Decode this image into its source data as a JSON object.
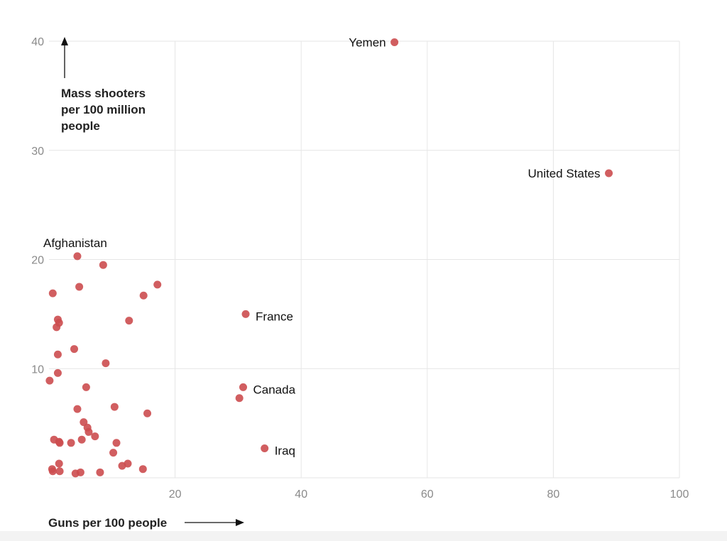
{
  "chart_data": {
    "type": "scatter",
    "title": "",
    "xlabel": "Guns per 100 people",
    "ylabel_lines": [
      "Mass shooters",
      "per 100 million",
      "people"
    ],
    "xlim": [
      0,
      100
    ],
    "ylim": [
      0,
      40
    ],
    "x_ticks": [
      20,
      40,
      60,
      80,
      100
    ],
    "y_ticks": [
      10,
      20,
      30,
      40
    ],
    "grid": true,
    "marker_color": "#cc4c4f",
    "labeled_points": [
      {
        "name": "Yemen",
        "x": 54.8,
        "y": 39.9,
        "label_side": "left"
      },
      {
        "name": "United States",
        "x": 88.8,
        "y": 27.9,
        "label_side": "left"
      },
      {
        "name": "Afghanistan",
        "x": 4.5,
        "y": 20.3,
        "label_side": "above"
      },
      {
        "name": "France",
        "x": 31.2,
        "y": 15.0,
        "label_side": "right"
      },
      {
        "name": "Canada",
        "x": 30.8,
        "y": 8.3,
        "label_side": "right"
      },
      {
        "name": "Iraq",
        "x": 34.2,
        "y": 2.7,
        "label_side": "right"
      }
    ],
    "points": [
      {
        "x": 8.6,
        "y": 19.5
      },
      {
        "x": 17.2,
        "y": 17.7
      },
      {
        "x": 0.6,
        "y": 16.9
      },
      {
        "x": 4.8,
        "y": 17.5
      },
      {
        "x": 15.0,
        "y": 16.7
      },
      {
        "x": 1.4,
        "y": 14.5
      },
      {
        "x": 1.6,
        "y": 14.2
      },
      {
        "x": 1.2,
        "y": 13.8
      },
      {
        "x": 12.7,
        "y": 14.4
      },
      {
        "x": 4.0,
        "y": 11.8
      },
      {
        "x": 1.4,
        "y": 11.3
      },
      {
        "x": 9.0,
        "y": 10.5
      },
      {
        "x": 1.4,
        "y": 9.6
      },
      {
        "x": 0.1,
        "y": 8.9
      },
      {
        "x": 5.9,
        "y": 8.3
      },
      {
        "x": 30.2,
        "y": 7.3
      },
      {
        "x": 10.4,
        "y": 6.5
      },
      {
        "x": 4.5,
        "y": 6.3
      },
      {
        "x": 15.6,
        "y": 5.9
      },
      {
        "x": 5.5,
        "y": 5.1
      },
      {
        "x": 6.1,
        "y": 4.6
      },
      {
        "x": 6.3,
        "y": 4.2
      },
      {
        "x": 7.3,
        "y": 3.8
      },
      {
        "x": 0.8,
        "y": 3.5
      },
      {
        "x": 1.6,
        "y": 3.3
      },
      {
        "x": 1.7,
        "y": 3.2
      },
      {
        "x": 3.5,
        "y": 3.2
      },
      {
        "x": 5.2,
        "y": 3.5
      },
      {
        "x": 10.7,
        "y": 3.2
      },
      {
        "x": 10.2,
        "y": 2.3
      },
      {
        "x": 1.6,
        "y": 1.3
      },
      {
        "x": 12.5,
        "y": 1.3
      },
      {
        "x": 11.6,
        "y": 1.1
      },
      {
        "x": 14.9,
        "y": 0.8
      },
      {
        "x": 0.5,
        "y": 0.8
      },
      {
        "x": 0.6,
        "y": 0.6
      },
      {
        "x": 1.7,
        "y": 0.6
      },
      {
        "x": 4.2,
        "y": 0.4
      },
      {
        "x": 5.0,
        "y": 0.5
      },
      {
        "x": 8.1,
        "y": 0.5
      }
    ]
  }
}
